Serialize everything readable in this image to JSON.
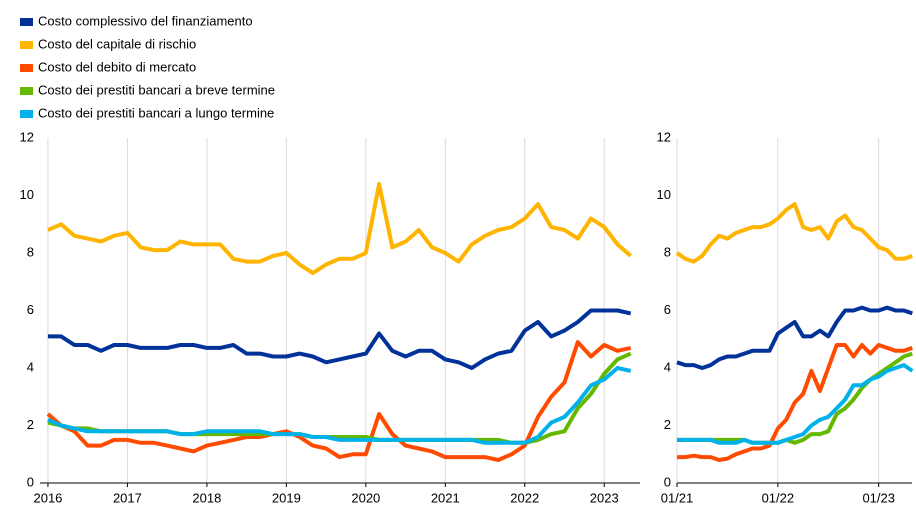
{
  "chart_data": [
    {
      "type": "line",
      "x": [
        2016,
        2016.167,
        2016.333,
        2016.5,
        2016.667,
        2016.833,
        2017,
        2017.167,
        2017.333,
        2017.5,
        2017.667,
        2017.833,
        2018,
        2018.167,
        2018.333,
        2018.5,
        2018.667,
        2018.833,
        2019,
        2019.167,
        2019.333,
        2019.5,
        2019.667,
        2019.833,
        2020,
        2020.167,
        2020.333,
        2020.5,
        2020.667,
        2020.833,
        2021,
        2021.167,
        2021.333,
        2021.5,
        2021.667,
        2021.833,
        2022,
        2022.167,
        2022.333,
        2022.5,
        2022.667,
        2022.833,
        2023,
        2023.167,
        2023.333
      ],
      "xlim": [
        2015.9,
        2023.45
      ],
      "xticks": [
        2016,
        2017,
        2018,
        2019,
        2020,
        2021,
        2022,
        2023
      ],
      "ylim": [
        0,
        12
      ],
      "yticks": [
        0,
        2,
        4,
        6,
        8,
        10,
        12
      ],
      "grid": "x",
      "series": [
        {
          "name": "Costo complessivo del finanziamento",
          "color": "#003299",
          "values": [
            5.1,
            5.1,
            4.8,
            4.8,
            4.6,
            4.8,
            4.8,
            4.7,
            4.7,
            4.7,
            4.8,
            4.8,
            4.7,
            4.7,
            4.8,
            4.5,
            4.5,
            4.4,
            4.4,
            4.5,
            4.4,
            4.2,
            4.3,
            4.4,
            4.5,
            5.2,
            4.6,
            4.4,
            4.6,
            4.6,
            4.3,
            4.2,
            4.0,
            4.3,
            4.5,
            4.6,
            5.3,
            5.6,
            5.1,
            5.3,
            5.6,
            6.0,
            6.0,
            6.0,
            5.9
          ]
        },
        {
          "name": "Costo del capitale di rischio",
          "color": "#ffb400",
          "values": [
            8.8,
            9.0,
            8.6,
            8.5,
            8.4,
            8.6,
            8.7,
            8.2,
            8.1,
            8.1,
            8.4,
            8.3,
            8.3,
            8.3,
            7.8,
            7.7,
            7.7,
            7.9,
            8.0,
            7.6,
            7.3,
            7.6,
            7.8,
            7.8,
            8.0,
            10.4,
            8.2,
            8.4,
            8.8,
            8.2,
            8.0,
            7.7,
            8.3,
            8.6,
            8.8,
            8.9,
            9.2,
            9.7,
            8.9,
            8.8,
            8.5,
            9.2,
            8.9,
            8.3,
            7.9
          ]
        },
        {
          "name": "Costo del debito di mercato",
          "color": "#ff4b00",
          "values": [
            2.4,
            2.0,
            1.8,
            1.3,
            1.3,
            1.5,
            1.5,
            1.4,
            1.4,
            1.3,
            1.2,
            1.1,
            1.3,
            1.4,
            1.5,
            1.6,
            1.6,
            1.7,
            1.8,
            1.6,
            1.3,
            1.2,
            0.9,
            1.0,
            1.0,
            2.4,
            1.7,
            1.3,
            1.2,
            1.1,
            0.9,
            0.9,
            0.9,
            0.9,
            0.8,
            1.0,
            1.3,
            2.3,
            3.0,
            3.5,
            4.9,
            4.4,
            4.8,
            4.6,
            4.7
          ]
        },
        {
          "name": "Costo dei prestiti bancari a breve termine",
          "color": "#65b800",
          "values": [
            2.1,
            2.0,
            1.9,
            1.9,
            1.8,
            1.8,
            1.8,
            1.8,
            1.8,
            1.8,
            1.7,
            1.7,
            1.7,
            1.7,
            1.7,
            1.7,
            1.7,
            1.7,
            1.7,
            1.7,
            1.6,
            1.6,
            1.6,
            1.6,
            1.6,
            1.5,
            1.5,
            1.5,
            1.5,
            1.5,
            1.5,
            1.5,
            1.5,
            1.5,
            1.5,
            1.4,
            1.4,
            1.5,
            1.7,
            1.8,
            2.6,
            3.1,
            3.8,
            4.3,
            4.5
          ]
        },
        {
          "name": "Costo dei prestiti bancari a lungo termine",
          "color": "#00b1ea",
          "values": [
            2.2,
            2.0,
            1.9,
            1.8,
            1.8,
            1.8,
            1.8,
            1.8,
            1.8,
            1.8,
            1.7,
            1.7,
            1.8,
            1.8,
            1.8,
            1.8,
            1.8,
            1.7,
            1.7,
            1.7,
            1.6,
            1.6,
            1.5,
            1.5,
            1.5,
            1.5,
            1.5,
            1.5,
            1.5,
            1.5,
            1.5,
            1.5,
            1.5,
            1.4,
            1.4,
            1.4,
            1.4,
            1.6,
            2.1,
            2.3,
            2.8,
            3.4,
            3.6,
            4.0,
            3.9
          ]
        }
      ]
    },
    {
      "type": "line",
      "x": [
        2021,
        2021.083,
        2021.167,
        2021.25,
        2021.333,
        2021.417,
        2021.5,
        2021.583,
        2021.667,
        2021.75,
        2021.833,
        2021.917,
        2022,
        2022.083,
        2022.167,
        2022.25,
        2022.333,
        2022.417,
        2022.5,
        2022.583,
        2022.667,
        2022.75,
        2022.833,
        2022.917,
        2023,
        2023.083,
        2023.167,
        2023.25,
        2023.333
      ],
      "xlim": [
        2021,
        2023.33
      ],
      "xticks": [
        {
          "value": 2021,
          "label": "01/21"
        },
        {
          "value": 2022,
          "label": "01/22"
        },
        {
          "value": 2023,
          "label": "01/23"
        }
      ],
      "ylim": [
        0,
        12
      ],
      "yticks": [
        0,
        2,
        4,
        6,
        8,
        10,
        12
      ],
      "grid": "x",
      "series": [
        {
          "color": "#003299",
          "values": [
            4.2,
            4.1,
            4.1,
            4.0,
            4.1,
            4.3,
            4.4,
            4.4,
            4.5,
            4.6,
            4.6,
            4.6,
            5.2,
            5.4,
            5.6,
            5.1,
            5.1,
            5.3,
            5.1,
            5.6,
            6.0,
            6.0,
            6.1,
            6.0,
            6.0,
            6.1,
            6.0,
            6.0,
            5.9
          ]
        },
        {
          "color": "#ffb400",
          "values": [
            8.0,
            7.8,
            7.7,
            7.9,
            8.3,
            8.6,
            8.5,
            8.7,
            8.8,
            8.9,
            8.9,
            9.0,
            9.2,
            9.5,
            9.7,
            8.9,
            8.8,
            8.9,
            8.5,
            9.1,
            9.3,
            8.9,
            8.8,
            8.5,
            8.2,
            8.1,
            7.8,
            7.8,
            7.9
          ]
        },
        {
          "color": "#ff4b00",
          "values": [
            0.9,
            0.9,
            0.95,
            0.9,
            0.9,
            0.8,
            0.85,
            1.0,
            1.1,
            1.2,
            1.2,
            1.3,
            1.9,
            2.2,
            2.8,
            3.1,
            3.9,
            3.2,
            4.0,
            4.8,
            4.8,
            4.4,
            4.8,
            4.5,
            4.8,
            4.7,
            4.6,
            4.6,
            4.7
          ]
        },
        {
          "color": "#65b800",
          "values": [
            1.5,
            1.5,
            1.5,
            1.5,
            1.5,
            1.5,
            1.5,
            1.5,
            1.5,
            1.4,
            1.4,
            1.4,
            1.4,
            1.5,
            1.4,
            1.5,
            1.7,
            1.7,
            1.8,
            2.4,
            2.6,
            2.9,
            3.3,
            3.6,
            3.8,
            4.0,
            4.2,
            4.4,
            4.5
          ]
        },
        {
          "color": "#00b1ea",
          "values": [
            1.5,
            1.5,
            1.5,
            1.5,
            1.5,
            1.4,
            1.4,
            1.4,
            1.5,
            1.4,
            1.4,
            1.4,
            1.4,
            1.5,
            1.6,
            1.7,
            2.0,
            2.2,
            2.3,
            2.6,
            2.9,
            3.4,
            3.4,
            3.6,
            3.7,
            3.9,
            4.0,
            4.1,
            3.9
          ]
        }
      ]
    }
  ]
}
